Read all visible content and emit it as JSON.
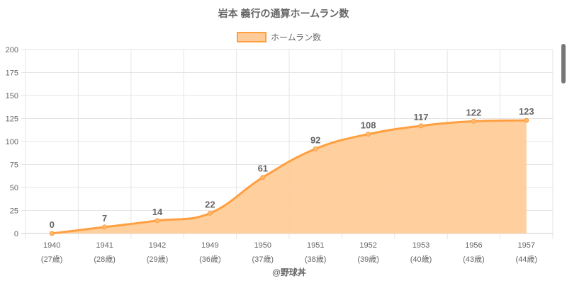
{
  "chart_data": {
    "type": "line",
    "title": "岩本 義行の通算ホームラン数",
    "legend": {
      "label": "ホームラン数",
      "placement": "top"
    },
    "categories": [
      "1940",
      "1941",
      "1942",
      "1949",
      "1950",
      "1951",
      "1952",
      "1953",
      "1956",
      "1957"
    ],
    "sublabels": [
      "(27歳)",
      "(28歳)",
      "(29歳)",
      "(36歳)",
      "(37歳)",
      "(38歳)",
      "(39歳)",
      "(40歳)",
      "(43歳)",
      "(44歳)"
    ],
    "series": [
      {
        "name": "ホームラン数",
        "values": [
          0,
          7,
          14,
          22,
          61,
          92,
          108,
          117,
          122,
          123
        ]
      }
    ],
    "ylim": [
      0,
      200
    ],
    "yticks": [
      0,
      25,
      50,
      75,
      100,
      125,
      150,
      175,
      200
    ],
    "xlabel": "@野球丼",
    "ylabel": "",
    "grid": true,
    "colors": {
      "line": "#ff9f40",
      "fill": "#ffcc99",
      "text": "#666666",
      "grid": "#e5e5e5"
    }
  }
}
